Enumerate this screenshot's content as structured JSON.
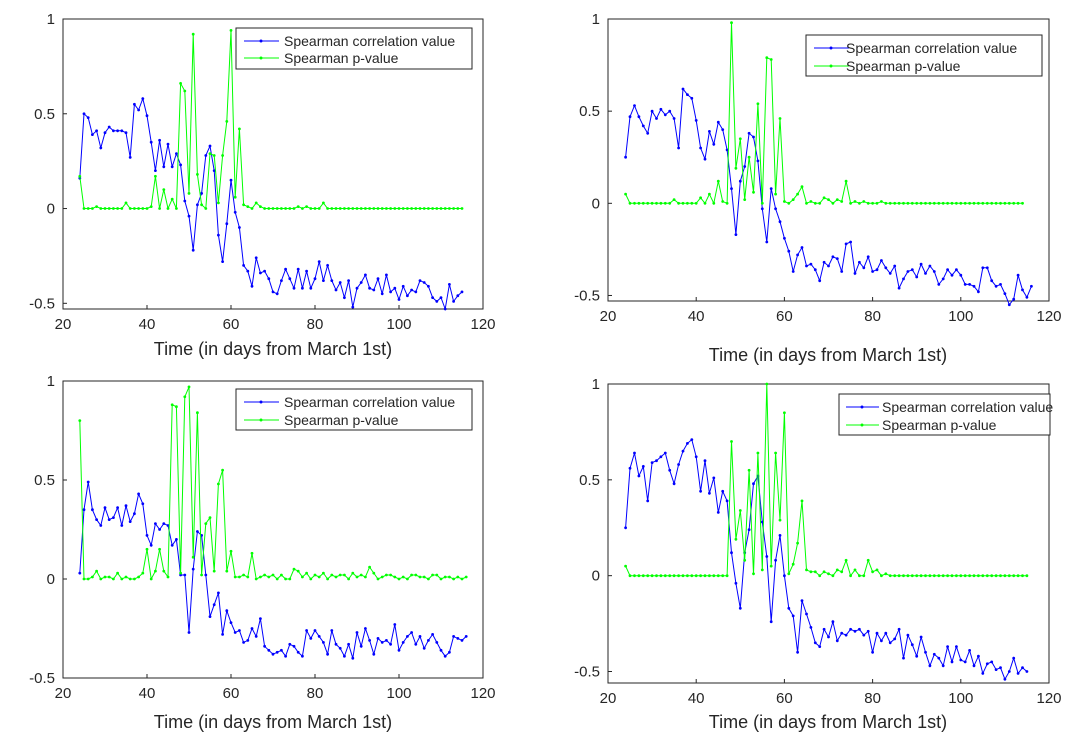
{
  "legend": {
    "corr_label": "Spearman correlation value",
    "pval_label": "Spearman p-value"
  },
  "colors": {
    "corr": "#0000ff",
    "pval": "#00ff00",
    "axis": "#262626"
  },
  "chart_data": [
    {
      "type": "line",
      "xlabel": "Time (in days from March 1st)",
      "ylabel": "",
      "xlim": [
        20,
        120
      ],
      "ylim": [
        -0.53,
        1.0
      ],
      "xticks": [
        20,
        40,
        60,
        80,
        100,
        120
      ],
      "yticks": [
        -0.5,
        0,
        0.5,
        1
      ],
      "legend_position": "top-right",
      "x_start": 24,
      "series": [
        {
          "name": "Spearman correlation value",
          "color": "#0000ff",
          "values": [
            0.16,
            0.5,
            0.48,
            0.39,
            0.41,
            0.32,
            0.4,
            0.43,
            0.41,
            0.41,
            0.41,
            0.4,
            0.27,
            0.55,
            0.52,
            0.58,
            0.49,
            0.35,
            0.2,
            0.36,
            0.22,
            0.34,
            0.22,
            0.29,
            0.23,
            0.04,
            -0.04,
            -0.22,
            0.02,
            0.08,
            0.28,
            0.33,
            0.2,
            -0.14,
            -0.28,
            -0.08,
            0.15,
            -0.02,
            -0.1,
            -0.3,
            -0.33,
            -0.41,
            -0.26,
            -0.34,
            -0.33,
            -0.37,
            -0.44,
            -0.45,
            -0.38,
            -0.32,
            -0.37,
            -0.42,
            -0.32,
            -0.42,
            -0.33,
            -0.42,
            -0.37,
            -0.28,
            -0.38,
            -0.3,
            -0.38,
            -0.43,
            -0.39,
            -0.47,
            -0.38,
            -0.52,
            -0.42,
            -0.39,
            -0.35,
            -0.42,
            -0.43,
            -0.37,
            -0.45,
            -0.35,
            -0.44,
            -0.42,
            -0.48,
            -0.41,
            -0.46,
            -0.43,
            -0.44,
            -0.38,
            -0.39,
            -0.41,
            -0.47,
            -0.49,
            -0.47,
            -0.53,
            -0.4,
            -0.49,
            -0.46,
            -0.44
          ]
        },
        {
          "name": "Spearman p-value",
          "color": "#00ff00",
          "values": [
            0.17,
            0,
            0,
            0,
            0.01,
            0,
            0,
            0,
            0,
            0,
            0,
            0.03,
            0,
            0,
            0,
            0,
            0,
            0.01,
            0.17,
            0,
            0.1,
            0,
            0.05,
            0,
            0.66,
            0.62,
            0.08,
            0.92,
            0.18,
            0.02,
            0,
            0.29,
            0.28,
            0.03,
            0.28,
            0.46,
            0.94,
            0.06,
            0.42,
            0.02,
            0.01,
            0,
            0.03,
            0.01,
            0,
            0,
            0,
            0,
            0,
            0,
            0,
            0,
            0.01,
            0,
            0.01,
            0,
            0,
            0,
            0.03,
            0,
            0,
            0,
            0,
            0,
            0,
            0,
            0,
            0,
            0,
            0,
            0,
            0,
            0,
            0,
            0,
            0,
            0,
            0,
            0,
            0,
            0,
            0,
            0,
            0,
            0,
            0,
            0,
            0,
            0,
            0,
            0,
            0
          ]
        }
      ]
    },
    {
      "type": "line",
      "xlabel": "Time (in days from March 1st)",
      "ylabel": "",
      "xlim": [
        20,
        120
      ],
      "ylim": [
        -0.53,
        1.0
      ],
      "xticks": [
        20,
        40,
        60,
        80,
        100,
        120
      ],
      "yticks": [
        -0.5,
        0,
        0.5,
        1
      ],
      "legend_position": "top-right",
      "x_start": 24,
      "series": [
        {
          "name": "Spearman correlation value",
          "color": "#0000ff",
          "values": [
            0.25,
            0.47,
            0.53,
            0.47,
            0.42,
            0.38,
            0.5,
            0.46,
            0.51,
            0.48,
            0.5,
            0.46,
            0.3,
            0.62,
            0.59,
            0.57,
            0.45,
            0.3,
            0.24,
            0.39,
            0.32,
            0.44,
            0.4,
            0.29,
            0.08,
            -0.17,
            0.12,
            0.2,
            0.38,
            0.36,
            0.23,
            -0.03,
            -0.21,
            0.08,
            -0.03,
            -0.1,
            -0.19,
            -0.26,
            -0.37,
            -0.28,
            -0.24,
            -0.34,
            -0.33,
            -0.36,
            -0.42,
            -0.32,
            -0.34,
            -0.29,
            -0.3,
            -0.37,
            -0.22,
            -0.21,
            -0.38,
            -0.32,
            -0.35,
            -0.29,
            -0.37,
            -0.36,
            -0.31,
            -0.35,
            -0.38,
            -0.34,
            -0.46,
            -0.41,
            -0.37,
            -0.36,
            -0.4,
            -0.33,
            -0.38,
            -0.34,
            -0.37,
            -0.44,
            -0.41,
            -0.36,
            -0.39,
            -0.36,
            -0.39,
            -0.44,
            -0.44,
            -0.45,
            -0.48,
            -0.35,
            -0.35,
            -0.42,
            -0.45,
            -0.44,
            -0.49,
            -0.55,
            -0.52,
            -0.39,
            -0.47,
            -0.51,
            -0.45
          ]
        },
        {
          "name": "Spearman p-value",
          "color": "#00ff00",
          "values": [
            0.05,
            0,
            0,
            0,
            0,
            0,
            0,
            0,
            0,
            0,
            0,
            0.02,
            0,
            0,
            0,
            0,
            0,
            0.03,
            0,
            0.05,
            0,
            0.12,
            0.01,
            0,
            0.98,
            0.19,
            0.35,
            0.02,
            0.25,
            0.06,
            0.54,
            0,
            0.79,
            0.78,
            0.05,
            0.46,
            0.01,
            0,
            0.02,
            0.05,
            0.09,
            0,
            0.01,
            0,
            0,
            0.03,
            0.02,
            0,
            0.02,
            0.01,
            0.12,
            0,
            0.01,
            0,
            0.01,
            0,
            0,
            0,
            0.01,
            0,
            0,
            0,
            0,
            0,
            0,
            0,
            0,
            0,
            0,
            0,
            0,
            0,
            0,
            0,
            0,
            0,
            0,
            0,
            0,
            0,
            0,
            0,
            0,
            0,
            0,
            0,
            0,
            0,
            0,
            0,
            0
          ]
        }
      ]
    },
    {
      "type": "line",
      "xlabel": "Time (in days from March 1st)",
      "ylabel": "",
      "xlim": [
        20,
        120
      ],
      "ylim": [
        -0.5,
        1.0
      ],
      "xticks": [
        20,
        40,
        60,
        80,
        100,
        120
      ],
      "yticks": [
        -0.5,
        0,
        0.5,
        1
      ],
      "legend_position": "top-right",
      "x_start": 24,
      "series": [
        {
          "name": "Spearman correlation value",
          "color": "#0000ff",
          "values": [
            0.03,
            0.35,
            0.49,
            0.35,
            0.3,
            0.27,
            0.36,
            0.3,
            0.31,
            0.36,
            0.27,
            0.37,
            0.29,
            0.33,
            0.43,
            0.38,
            0.22,
            0.17,
            0.28,
            0.25,
            0.28,
            0.27,
            0.17,
            0.2,
            0.02,
            0.02,
            -0.27,
            0.05,
            0.24,
            0.22,
            0.02,
            -0.19,
            -0.13,
            -0.07,
            -0.28,
            -0.16,
            -0.22,
            -0.27,
            -0.26,
            -0.32,
            -0.31,
            -0.25,
            -0.29,
            -0.2,
            -0.34,
            -0.36,
            -0.38,
            -0.37,
            -0.36,
            -0.39,
            -0.33,
            -0.34,
            -0.37,
            -0.39,
            -0.26,
            -0.3,
            -0.26,
            -0.29,
            -0.32,
            -0.38,
            -0.26,
            -0.33,
            -0.35,
            -0.39,
            -0.33,
            -0.4,
            -0.27,
            -0.34,
            -0.25,
            -0.31,
            -0.38,
            -0.3,
            -0.32,
            -0.31,
            -0.33,
            -0.23,
            -0.36,
            -0.32,
            -0.29,
            -0.27,
            -0.33,
            -0.29,
            -0.35,
            -0.31,
            -0.28,
            -0.32,
            -0.36,
            -0.39,
            -0.37,
            -0.29,
            -0.3,
            -0.31,
            -0.29
          ]
        },
        {
          "name": "Spearman p-value",
          "color": "#00ff00",
          "values": [
            0.8,
            0,
            0,
            0.01,
            0.04,
            0,
            0.01,
            0.01,
            0,
            0.03,
            0,
            0.01,
            0,
            0,
            0.01,
            0.03,
            0.15,
            0,
            0.04,
            0.15,
            0.04,
            0.01,
            0.88,
            0.87,
            0.03,
            0.92,
            0.97,
            0.11,
            0.84,
            0.02,
            0.28,
            0.31,
            0.04,
            0.48,
            0.55,
            0.04,
            0.14,
            0.01,
            0.01,
            0.02,
            0.01,
            0.13,
            0,
            0.01,
            0.02,
            0.01,
            0.02,
            0,
            0.02,
            0,
            0,
            0.05,
            0.04,
            0.01,
            0.03,
            0,
            0.02,
            0.01,
            0.03,
            0,
            0.02,
            0.01,
            0.02,
            0.02,
            0,
            0.03,
            0.01,
            0.02,
            0.01,
            0.06,
            0.03,
            0,
            0.01,
            0.02,
            0.02,
            0.01,
            0,
            0.01,
            0,
            0.02,
            0.02,
            0.01,
            0.01,
            0,
            0.02,
            0.02,
            0,
            0.01,
            0.01,
            0,
            0.01,
            0,
            0.01
          ]
        }
      ]
    },
    {
      "type": "line",
      "xlabel": "Time (in days from March 1st)",
      "ylabel": "",
      "xlim": [
        20,
        120
      ],
      "ylim": [
        -0.56,
        1.0
      ],
      "xticks": [
        20,
        40,
        60,
        80,
        100,
        120
      ],
      "yticks": [
        -0.5,
        0,
        0.5,
        1
      ],
      "legend_position": "top-right",
      "x_start": 24,
      "series": [
        {
          "name": "Spearman correlation value",
          "color": "#0000ff",
          "values": [
            0.25,
            0.56,
            0.64,
            0.52,
            0.57,
            0.39,
            0.59,
            0.6,
            0.62,
            0.64,
            0.55,
            0.48,
            0.58,
            0.65,
            0.69,
            0.71,
            0.62,
            0.44,
            0.6,
            0.43,
            0.51,
            0.33,
            0.44,
            0.39,
            0.12,
            -0.04,
            -0.17,
            0.12,
            0.24,
            0.48,
            0.52,
            0.28,
            0.1,
            -0.24,
            0.08,
            0.21,
            0.0,
            -0.17,
            -0.21,
            -0.4,
            -0.13,
            -0.2,
            -0.27,
            -0.35,
            -0.37,
            -0.28,
            -0.32,
            -0.24,
            -0.34,
            -0.3,
            -0.31,
            -0.28,
            -0.29,
            -0.28,
            -0.31,
            -0.29,
            -0.4,
            -0.3,
            -0.34,
            -0.3,
            -0.35,
            -0.33,
            -0.28,
            -0.43,
            -0.31,
            -0.36,
            -0.42,
            -0.32,
            -0.4,
            -0.47,
            -0.41,
            -0.43,
            -0.47,
            -0.37,
            -0.45,
            -0.37,
            -0.44,
            -0.45,
            -0.39,
            -0.47,
            -0.42,
            -0.51,
            -0.46,
            -0.45,
            -0.49,
            -0.48,
            -0.54,
            -0.5,
            -0.43,
            -0.51,
            -0.48,
            -0.5
          ]
        },
        {
          "name": "Spearman p-value",
          "color": "#00ff00",
          "values": [
            0.05,
            0,
            0,
            0,
            0,
            0,
            0,
            0,
            0,
            0,
            0,
            0,
            0,
            0,
            0,
            0,
            0,
            0,
            0,
            0,
            0,
            0,
            0,
            0,
            0.7,
            0.19,
            0.34,
            0.08,
            0.55,
            0.01,
            0.64,
            0.03,
            1.0,
            0.05,
            0.64,
            0.29,
            0.85,
            0.01,
            0.06,
            0.17,
            0.39,
            0.03,
            0.02,
            0.02,
            0,
            0.02,
            0.01,
            0,
            0.03,
            0.02,
            0.08,
            0,
            0.03,
            0,
            0,
            0.08,
            0.02,
            0.03,
            0,
            0.01,
            0,
            0,
            0,
            0,
            0,
            0,
            0,
            0,
            0,
            0,
            0,
            0,
            0,
            0,
            0,
            0,
            0,
            0,
            0,
            0,
            0,
            0,
            0,
            0,
            0,
            0,
            0,
            0,
            0,
            0,
            0,
            0
          ]
        }
      ]
    }
  ]
}
